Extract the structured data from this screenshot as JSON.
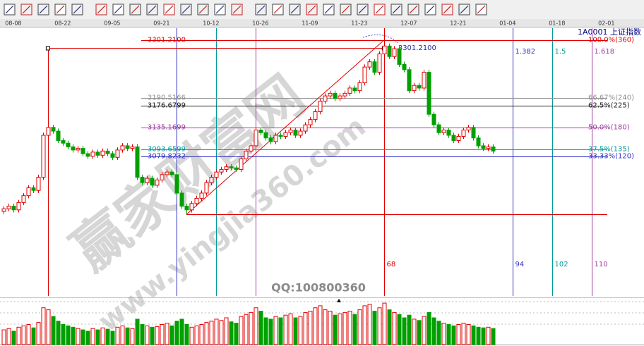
{
  "chart_data": {
    "type": "candlestick",
    "title": "1A0001 上证指数",
    "xlim": [
      -0.7,
      129.6
    ],
    "ylim": [
      2814,
      3324
    ],
    "xticks": [
      {
        "value": 2,
        "label": "08-08"
      },
      {
        "value": 12,
        "label": "08-22"
      },
      {
        "value": 22,
        "label": "09-05"
      },
      {
        "value": 32,
        "label": "09-21"
      },
      {
        "value": 42,
        "label": "10-12"
      },
      {
        "value": 52,
        "label": "10-26"
      },
      {
        "value": 62,
        "label": "11-09"
      },
      {
        "value": 72,
        "label": "11-23"
      },
      {
        "value": 82,
        "label": "12-07"
      },
      {
        "value": 92,
        "label": "12-21"
      },
      {
        "value": 102,
        "label": "01-04"
      },
      {
        "value": 112,
        "label": "01-18"
      },
      {
        "value": 122,
        "label": "02-01"
      }
    ],
    "open": [
      2975,
      2980,
      2985,
      2978,
      2992,
      3005,
      3020,
      3015,
      3040,
      3120,
      3135,
      3128,
      3110,
      3105,
      3098,
      3092,
      3095,
      3085,
      3080,
      3088,
      3082,
      3090,
      3085,
      3078,
      3092,
      3100,
      3095,
      3098,
      3040,
      3030,
      3038,
      3025,
      3035,
      3045,
      3050,
      3045,
      3010,
      2985,
      2978,
      2990,
      3000,
      3010,
      3030,
      3040,
      3050,
      3055,
      3060,
      3058,
      3055,
      3075,
      3090,
      3100,
      3130,
      3125,
      3115,
      3108,
      3120,
      3118,
      3125,
      3130,
      3120,
      3128,
      3140,
      3150,
      3165,
      3185,
      3195,
      3200,
      3190,
      3195,
      3200,
      3210,
      3205,
      3220,
      3250,
      3260,
      3240,
      3275,
      3290,
      3270,
      3285,
      3255,
      3245,
      3205,
      3215,
      3210,
      3240,
      3160,
      3140,
      3125,
      3130,
      3120,
      3110,
      3118,
      3130,
      3135,
      3115,
      3100,
      3095,
      3098
    ],
    "high": [
      2985,
      2990,
      2990,
      2997,
      3010,
      3025,
      3025,
      3045,
      3125,
      3140,
      3140,
      3133,
      3115,
      3110,
      3103,
      3100,
      3100,
      3090,
      3093,
      3093,
      3095,
      3095,
      3090,
      3097,
      3105,
      3105,
      3103,
      3103,
      3045,
      3043,
      3043,
      3040,
      3050,
      3055,
      3055,
      3050,
      3015,
      2990,
      2995,
      3005,
      3015,
      3035,
      3045,
      3055,
      3060,
      3065,
      3065,
      3063,
      3080,
      3095,
      3105,
      3135,
      3135,
      3130,
      3120,
      3125,
      3125,
      3130,
      3135,
      3135,
      3133,
      3145,
      3155,
      3170,
      3190,
      3200,
      3205,
      3205,
      3200,
      3205,
      3215,
      3215,
      3225,
      3255,
      3265,
      3265,
      3280,
      3301.21,
      3295,
      3290,
      3290,
      3260,
      3250,
      3220,
      3220,
      3245,
      3245,
      3165,
      3145,
      3135,
      3135,
      3125,
      3123,
      3135,
      3140,
      3140,
      3120,
      3105,
      3103,
      3103
    ],
    "low": [
      2970,
      2975,
      2973,
      2973,
      2987,
      3000,
      3010,
      3010,
      3035,
      3115,
      3123,
      3105,
      3100,
      3093,
      3087,
      3087,
      3080,
      3075,
      3075,
      3077,
      3077,
      3080,
      3073,
      3073,
      3087,
      3090,
      3090,
      3035,
      3025,
      3025,
      3020,
      3020,
      3030,
      3040,
      3040,
      3005,
      2980,
      2969.13,
      2973,
      2985,
      2995,
      3005,
      3025,
      3035,
      3045,
      3050,
      3053,
      3050,
      3050,
      3070,
      3085,
      3095,
      3120,
      3110,
      3103,
      3103,
      3113,
      3113,
      3120,
      3115,
      3115,
      3123,
      3135,
      3145,
      3160,
      3180,
      3190,
      3185,
      3185,
      3190,
      3195,
      3200,
      3200,
      3215,
      3245,
      3235,
      3235,
      3270,
      3265,
      3265,
      3250,
      3240,
      3200,
      3200,
      3205,
      3205,
      3155,
      3135,
      3120,
      3120,
      3115,
      3105,
      3105,
      3113,
      3125,
      3110,
      3095,
      3090,
      3090,
      3085
    ],
    "close": [
      2980,
      2985,
      2978,
      2992,
      3005,
      3020,
      3015,
      3040,
      3120,
      3135,
      3128,
      3110,
      3105,
      3098,
      3092,
      3095,
      3085,
      3080,
      3088,
      3082,
      3090,
      3085,
      3078,
      3092,
      3100,
      3095,
      3098,
      3040,
      3030,
      3038,
      3025,
      3035,
      3045,
      3050,
      3045,
      3010,
      2985,
      2978,
      2990,
      3000,
      3010,
      3030,
      3040,
      3050,
      3055,
      3060,
      3058,
      3055,
      3075,
      3090,
      3100,
      3130,
      3125,
      3115,
      3108,
      3120,
      3118,
      3125,
      3130,
      3120,
      3128,
      3140,
      3150,
      3165,
      3185,
      3195,
      3200,
      3190,
      3195,
      3200,
      3210,
      3205,
      3220,
      3250,
      3260,
      3240,
      3275,
      3290,
      3270,
      3285,
      3255,
      3245,
      3205,
      3215,
      3210,
      3240,
      3160,
      3140,
      3125,
      3130,
      3120,
      3110,
      3118,
      3130,
      3135,
      3115,
      3100,
      3095,
      3098,
      3090
    ],
    "volume": [
      22,
      24,
      20,
      26,
      28,
      30,
      25,
      33,
      55,
      52,
      42,
      35,
      30,
      28,
      26,
      24,
      22,
      20,
      24,
      22,
      25,
      23,
      20,
      26,
      28,
      25,
      24,
      38,
      30,
      28,
      26,
      27,
      30,
      32,
      28,
      35,
      38,
      30,
      26,
      28,
      30,
      33,
      35,
      38,
      36,
      40,
      34,
      32,
      42,
      45,
      48,
      55,
      50,
      40,
      38,
      42,
      40,
      44,
      46,
      40,
      42,
      48,
      50,
      55,
      58,
      52,
      50,
      44,
      46,
      48,
      50,
      45,
      52,
      58,
      60,
      50,
      55,
      62,
      52,
      48,
      45,
      40,
      44,
      38,
      36,
      42,
      48,
      40,
      35,
      32,
      30,
      28,
      30,
      32,
      30,
      28,
      26,
      25,
      26,
      24
    ],
    "up_color": "#e00000",
    "down_color": "#00a000",
    "fib_levels": [
      {
        "value": 3301.21,
        "label": "3301.2100",
        "ratio_label": "100.0%(360)",
        "color": "#e00000"
      },
      {
        "value": 3190.5166,
        "label": "3190.5166",
        "ratio_label": "66.67%(240)",
        "color": "#909090"
      },
      {
        "value": 3176.6799,
        "label": "3176.6799",
        "ratio_label": "62.5%(225)",
        "color": "#202020"
      },
      {
        "value": 3135.1699,
        "label": "3135.1699",
        "ratio_label": "50.0%(180)",
        "color": "#a03ca0"
      },
      {
        "value": 3093.6599,
        "label": "3093.6599",
        "ratio_label": "37.5%(135)",
        "color": "#009a9a"
      },
      {
        "value": 3079.8232,
        "label": "3079.8232",
        "ratio_label": "33.33%(120)",
        "color": "#3030c0"
      }
    ],
    "fib_base": {
      "value": 2969.13,
      "color": "#e00000"
    },
    "trend_line": {
      "x": [
        37,
        77
      ],
      "y": [
        2969.13,
        3301.21
      ],
      "color": "#e00000"
    },
    "hline": {
      "x": [
        9,
        77
      ],
      "y": 3286,
      "color": "#e00000"
    },
    "peak_label": "3301.2100",
    "time_lines": [
      {
        "x": 9,
        "color": "#e00000"
      },
      {
        "x": 35,
        "color": "#3030c0"
      },
      {
        "x": 43,
        "color": "#009a9a"
      },
      {
        "x": 51,
        "color": "#a03ca0"
      },
      {
        "x": 77,
        "color": "#e00000",
        "label": 68
      },
      {
        "x": 103,
        "color": "#3030c0",
        "label": 94,
        "ratio": 1.382
      },
      {
        "x": 111,
        "color": "#009a9a",
        "label": 102,
        "ratio": 1.5
      },
      {
        "x": 119,
        "color": "#a03ca0",
        "label": 110,
        "ratio": 1.618
      }
    ],
    "watermark": {
      "text": "赢家财富网",
      "url": "www.yingjia360.com",
      "qq": "QQ:100800360"
    }
  }
}
